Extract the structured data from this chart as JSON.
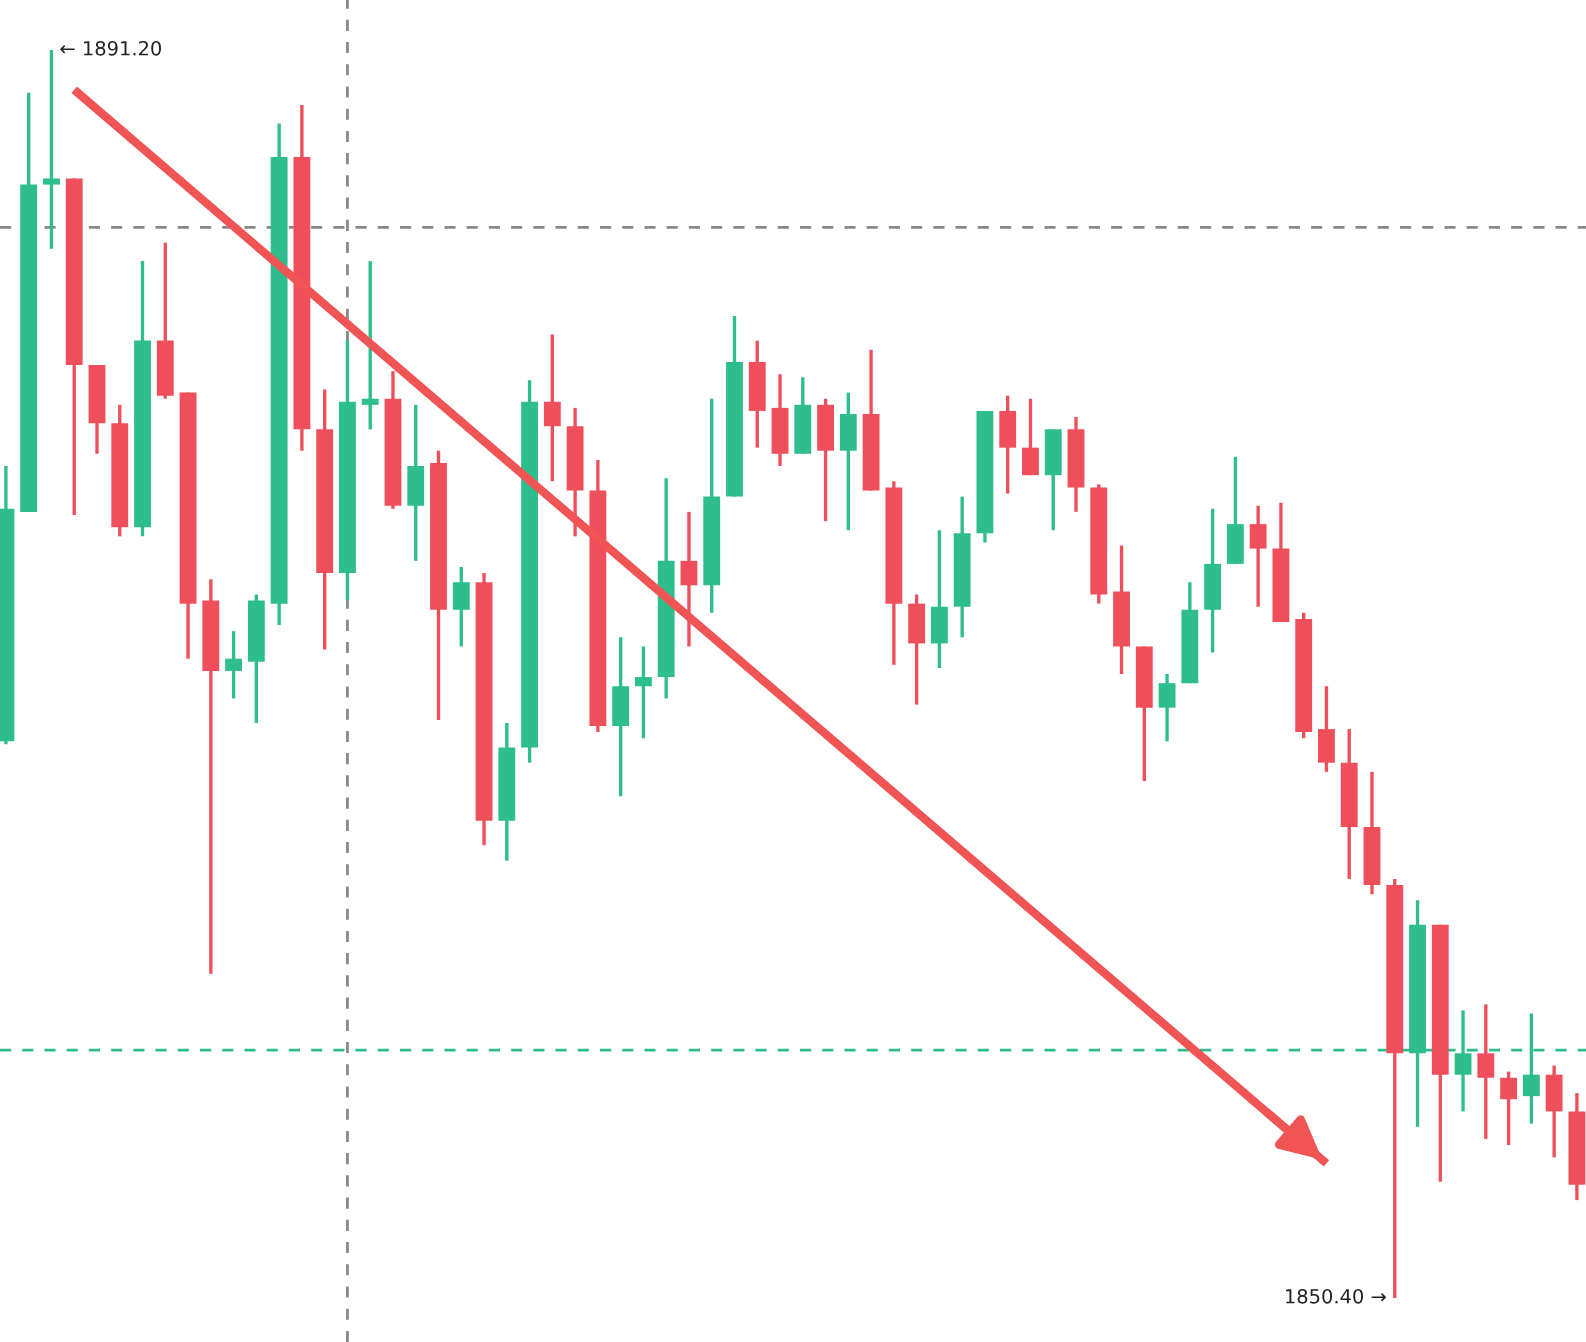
{
  "chart_data": {
    "type": "candlestick",
    "categories": [
      null,
      null,
      null,
      null,
      null,
      null,
      null,
      null,
      null,
      null,
      null,
      null,
      null,
      null,
      null,
      null,
      null,
      null,
      null,
      null,
      null,
      null,
      null,
      null,
      null,
      null,
      null,
      null,
      null,
      null,
      null,
      null,
      null,
      null,
      null,
      null,
      null,
      null,
      null,
      null,
      null,
      null,
      null,
      null,
      null,
      null,
      null,
      null,
      null,
      null,
      null,
      null,
      null,
      null,
      null,
      null,
      null,
      null,
      null,
      null,
      null,
      null,
      null,
      null,
      null,
      null,
      null,
      null,
      null,
      null
    ],
    "ohlc": [
      [
        1868.6,
        1877.6,
        1868.5,
        1876.2
      ],
      [
        1876.1,
        1889.8,
        1876.1,
        1886.8
      ],
      [
        1886.8,
        1891.2,
        1884.7,
        1887.0
      ],
      [
        1887.0,
        1887.0,
        1876.0,
        1880.9
      ],
      [
        1880.9,
        1880.9,
        1878.0,
        1879.0
      ],
      [
        1879.0,
        1879.6,
        1875.3,
        1875.6
      ],
      [
        1875.6,
        1884.3,
        1875.3,
        1881.7
      ],
      [
        1881.7,
        1884.9,
        1879.8,
        1879.9
      ],
      [
        1880.0,
        1880.0,
        1871.3,
        1873.1
      ],
      [
        1873.2,
        1873.9,
        1861.0,
        1870.9
      ],
      [
        1870.9,
        1872.2,
        1870.0,
        1871.3
      ],
      [
        1871.2,
        1873.4,
        1869.2,
        1873.2
      ],
      [
        1873.1,
        1888.8,
        1872.4,
        1887.7
      ],
      [
        1887.7,
        1889.4,
        1878.1,
        1878.8
      ],
      [
        1878.8,
        1880.1,
        1871.6,
        1874.1
      ],
      [
        1874.1,
        1881.7,
        1873.2,
        1879.7
      ],
      [
        1879.6,
        1884.3,
        1878.8,
        1879.8
      ],
      [
        1879.8,
        1880.7,
        1876.2,
        1876.3
      ],
      [
        1876.3,
        1879.6,
        1874.5,
        1877.6
      ],
      [
        1877.7,
        1878.1,
        1869.3,
        1872.9
      ],
      [
        1872.9,
        1874.3,
        1871.7,
        1873.8
      ],
      [
        1873.8,
        1874.1,
        1865.2,
        1866.0
      ],
      [
        1866.0,
        1869.2,
        1864.7,
        1868.4
      ],
      [
        1868.4,
        1880.4,
        1867.9,
        1879.7
      ],
      [
        1879.7,
        1881.9,
        1877.1,
        1878.9
      ],
      [
        1878.9,
        1879.5,
        1875.3,
        1876.8
      ],
      [
        1876.8,
        1877.8,
        1868.9,
        1869.1
      ],
      [
        1869.1,
        1872.0,
        1866.8,
        1870.4
      ],
      [
        1870.4,
        1871.7,
        1868.7,
        1870.7
      ],
      [
        1870.7,
        1877.2,
        1870.0,
        1874.5
      ],
      [
        1874.5,
        1876.1,
        1871.7,
        1873.7
      ],
      [
        1873.7,
        1879.8,
        1872.8,
        1876.6
      ],
      [
        1876.6,
        1882.5,
        1876.6,
        1881.0
      ],
      [
        1881.0,
        1881.7,
        1878.2,
        1879.4
      ],
      [
        1879.5,
        1880.6,
        1877.6,
        1878.0
      ],
      [
        1878.0,
        1880.5,
        1878.0,
        1879.6
      ],
      [
        1879.6,
        1879.8,
        1875.8,
        1878.1
      ],
      [
        1878.1,
        1880.0,
        1875.5,
        1879.3
      ],
      [
        1879.3,
        1881.4,
        1876.8,
        1876.8
      ],
      [
        1876.9,
        1877.1,
        1871.1,
        1873.1
      ],
      [
        1873.1,
        1873.4,
        1869.8,
        1871.8
      ],
      [
        1871.8,
        1875.5,
        1871.0,
        1873.0
      ],
      [
        1873.0,
        1876.6,
        1872.0,
        1875.4
      ],
      [
        1875.4,
        1879.4,
        1875.1,
        1879.4
      ],
      [
        1879.4,
        1879.9,
        1876.7,
        1878.2
      ],
      [
        1878.2,
        1879.8,
        1877.3,
        1877.3
      ],
      [
        1877.3,
        1878.8,
        1875.5,
        1878.8
      ],
      [
        1878.8,
        1879.2,
        1876.1,
        1876.9
      ],
      [
        1876.9,
        1877.0,
        1873.1,
        1873.4
      ],
      [
        1873.5,
        1875.0,
        1870.8,
        1871.7
      ],
      [
        1871.7,
        1871.7,
        1867.3,
        1869.7
      ],
      [
        1869.7,
        1870.8,
        1868.6,
        1870.5
      ],
      [
        1870.5,
        1873.8,
        1870.5,
        1872.9
      ],
      [
        1872.9,
        1876.2,
        1871.5,
        1874.4
      ],
      [
        1874.4,
        1877.9,
        1874.4,
        1875.7
      ],
      [
        1875.7,
        1876.3,
        1873.0,
        1874.9
      ],
      [
        1874.9,
        1876.4,
        1872.5,
        1872.5
      ],
      [
        1872.6,
        1872.8,
        1868.7,
        1868.9
      ],
      [
        1869.0,
        1870.4,
        1867.6,
        1867.9
      ],
      [
        1867.9,
        1869.0,
        1864.1,
        1865.8
      ],
      [
        1865.8,
        1867.6,
        1863.6,
        1863.9
      ],
      [
        1863.9,
        1864.1,
        1850.4,
        1858.4
      ],
      [
        1858.4,
        1863.4,
        1856.0,
        1862.6
      ],
      [
        1862.6,
        1862.6,
        1854.2,
        1857.7
      ],
      [
        1857.7,
        1859.8,
        1856.5,
        1858.4
      ],
      [
        1858.4,
        1860.0,
        1855.6,
        1857.6
      ],
      [
        1857.6,
        1857.8,
        1855.4,
        1856.9
      ],
      [
        1857.0,
        1859.7,
        1856.1,
        1857.7
      ],
      [
        1857.7,
        1858.0,
        1855.0,
        1856.5
      ],
      [
        1856.5,
        1857.1,
        1853.6,
        1854.1
      ]
    ],
    "colors": [
      "#2ebd8c",
      "#2ebd8c",
      "#2ebd8c",
      "#ef4f5a",
      "#ef4f5a",
      "#ef4f5a",
      "#2ebd8c",
      "#ef4f5a",
      "#ef4f5a",
      "#ef4f5a",
      "#2ebd8c",
      "#2ebd8c",
      "#2ebd8c",
      "#ef4f5a",
      "#ef4f5a",
      "#2ebd8c",
      "#2ebd8c",
      "#ef4f5a",
      "#2ebd8c",
      "#ef4f5a",
      "#2ebd8c",
      "#ef4f5a",
      "#2ebd8c",
      "#2ebd8c",
      "#ef4f5a",
      "#ef4f5a",
      "#ef4f5a",
      "#2ebd8c",
      "#2ebd8c",
      "#2ebd8c",
      "#ef4f5a",
      "#2ebd8c",
      "#2ebd8c",
      "#ef4f5a",
      "#ef4f5a",
      "#2ebd8c",
      "#ef4f5a",
      "#2ebd8c",
      "#ef4f5a",
      "#ef4f5a",
      "#ef4f5a",
      "#2ebd8c",
      "#2ebd8c",
      "#2ebd8c",
      "#ef4f5a",
      "#ef4f5a",
      "#2ebd8c",
      "#ef4f5a",
      "#ef4f5a",
      "#ef4f5a",
      "#ef4f5a",
      "#2ebd8c",
      "#2ebd8c",
      "#2ebd8c",
      "#2ebd8c",
      "#ef4f5a",
      "#ef4f5a",
      "#ef4f5a",
      "#ef4f5a",
      "#ef4f5a",
      "#ef4f5a",
      "#ef4f5a",
      "#2ebd8c",
      "#ef4f5a",
      "#2ebd8c",
      "#ef4f5a",
      "#ef4f5a",
      "#2ebd8c",
      "#ef4f5a",
      "#ef4f5a"
    ],
    "series": [
      {
        "type": "line",
        "values": [
          null,
          null,
          null,
          1889.9,
          null,
          null,
          null,
          null,
          null,
          null,
          null,
          null,
          null,
          null,
          null,
          null,
          null,
          null,
          null,
          null,
          null,
          null,
          null,
          null,
          null,
          null,
          null,
          null,
          null,
          null,
          null,
          null,
          null,
          null,
          null,
          null,
          null,
          null,
          null,
          null,
          null,
          null,
          null,
          null,
          null,
          null,
          null,
          null,
          null,
          null,
          null,
          null,
          null,
          null,
          null,
          null,
          null,
          null,
          1854.8,
          null,
          null,
          null,
          null,
          null,
          null,
          null,
          null,
          null,
          null,
          null
        ],
        "color": "#f05454"
      }
    ],
    "ref_lines": [
      {
        "axis": "y",
        "value": 1885.4,
        "color": "#888888",
        "line_style": "dashed"
      },
      {
        "axis": "y",
        "value": 1858.5,
        "color": "#2ebd8c",
        "line_style": "dashed"
      }
    ],
    "annotations": [
      "← 1891.20",
      "1850.40 →"
    ]
  }
}
